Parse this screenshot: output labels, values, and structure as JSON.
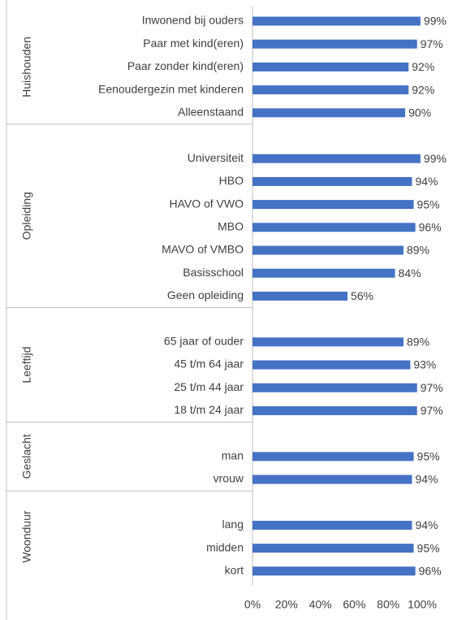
{
  "chart_data": {
    "type": "bar",
    "orientation": "horizontal",
    "color": "#4472c4",
    "xlim": [
      0,
      100
    ],
    "xticks": [
      {
        "value": 0,
        "label": "0%"
      },
      {
        "value": 20,
        "label": "20%"
      },
      {
        "value": 40,
        "label": "40%"
      },
      {
        "value": 60,
        "label": "60%"
      },
      {
        "value": 80,
        "label": "80%"
      },
      {
        "value": 100,
        "label": "100%"
      }
    ],
    "groups": [
      {
        "name": "Huishouden",
        "categories": [
          "Inwonend bij ouders",
          "Paar met kind(eren)",
          "Paar zonder kind(eren)",
          "Eenoudergezin met kinderen",
          "Alleenstaand"
        ],
        "values": [
          99,
          97,
          92,
          92,
          90
        ],
        "value_labels": [
          "99%",
          "97%",
          "92%",
          "92%",
          "90%"
        ]
      },
      {
        "name": "Opleiding",
        "categories": [
          null,
          "Universiteit",
          "HBO",
          "HAVO of VWO",
          "MBO",
          "MAVO of VMBO",
          "Basisschool",
          "Geen opleiding"
        ],
        "values": [
          null,
          99,
          94,
          95,
          96,
          89,
          84,
          56
        ],
        "value_labels": [
          null,
          "99%",
          "94%",
          "95%",
          "96%",
          "89%",
          "84%",
          "56%"
        ]
      },
      {
        "name": "Leeftijd",
        "categories": [
          null,
          "65 jaar of ouder",
          "45 t/m 64 jaar",
          "25 t/m 44 jaar",
          "18 t/m 24 jaar"
        ],
        "values": [
          null,
          89,
          93,
          97,
          97
        ],
        "value_labels": [
          null,
          "89%",
          "93%",
          "97%",
          "97%"
        ]
      },
      {
        "name": "Geslacht",
        "categories": [
          null,
          "man",
          "vrouw"
        ],
        "values": [
          null,
          95,
          94
        ],
        "value_labels": [
          null,
          "95%",
          "94%"
        ]
      },
      {
        "name": "Woonduur",
        "categories": [
          null,
          "lang",
          "midden",
          "kort"
        ],
        "values": [
          null,
          94,
          95,
          96
        ],
        "value_labels": [
          null,
          "94%",
          "95%",
          "96%"
        ]
      }
    ]
  }
}
